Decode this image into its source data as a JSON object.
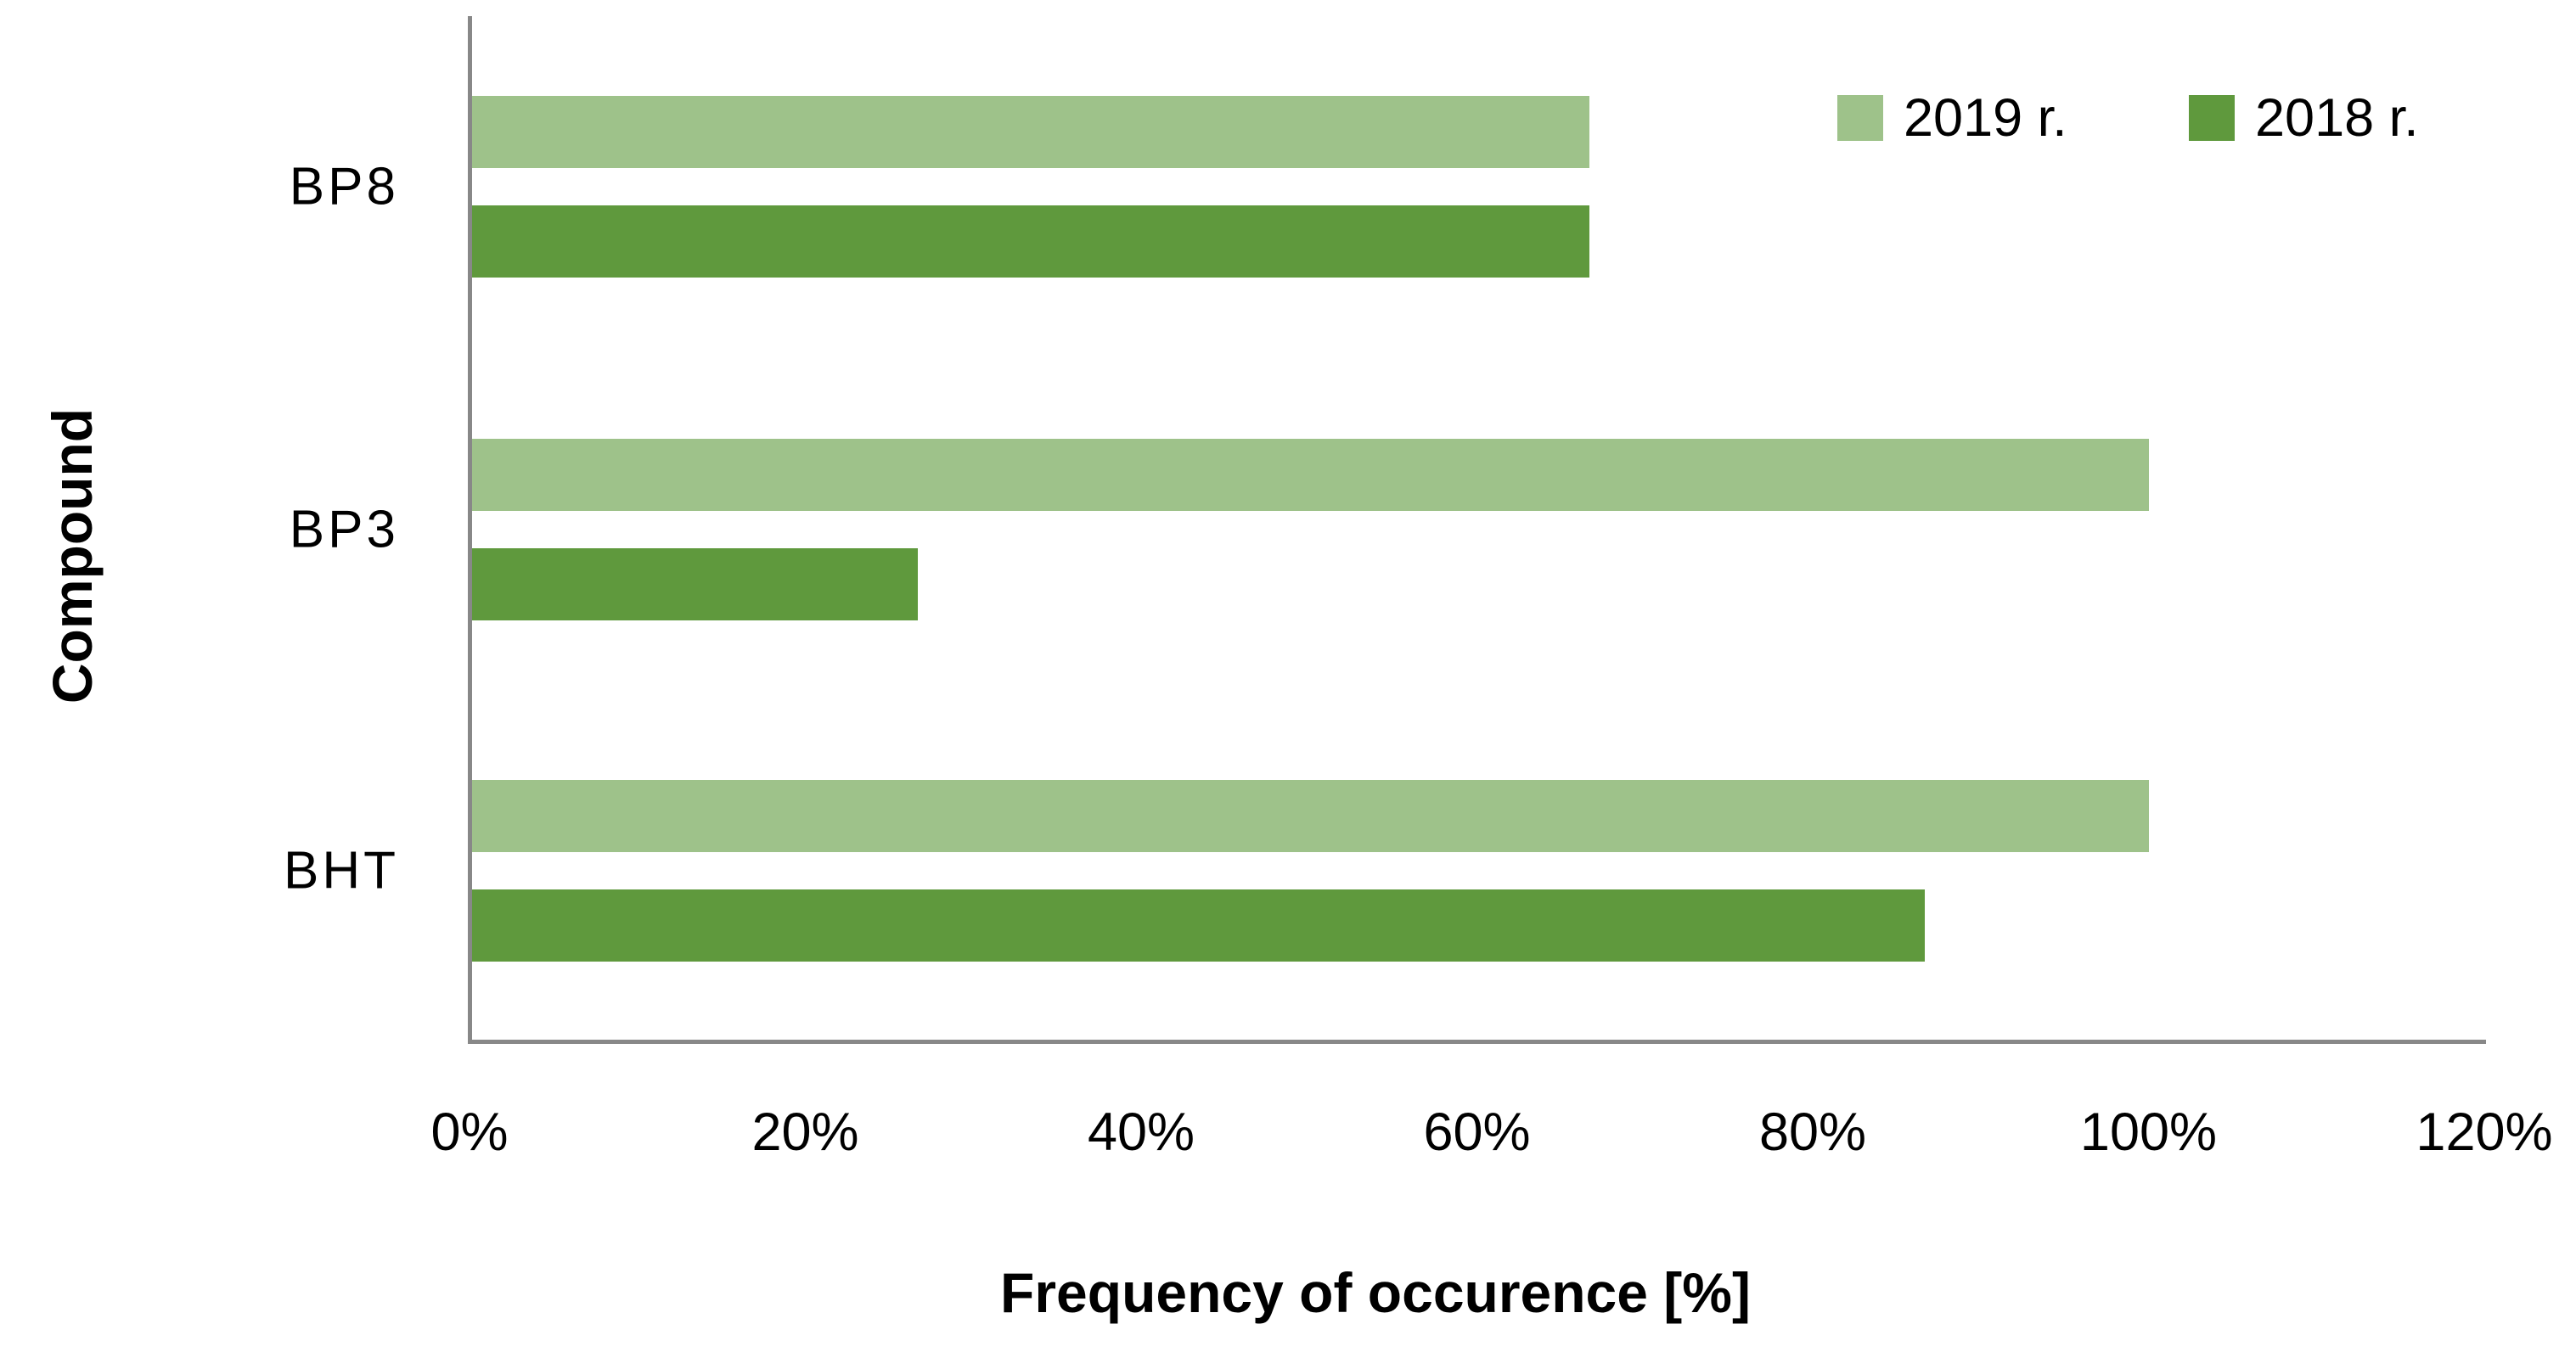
{
  "figure": {
    "background_color": "#FFFFFF",
    "axis_color": "#888888",
    "text_color": "#000000"
  },
  "chart_data": {
    "type": "bar",
    "orientation": "horizontal",
    "title": "",
    "xlabel": "Frequency of occurence [%]",
    "ylabel": "Compound",
    "categories": [
      "BP8",
      "BP3",
      "BHT"
    ],
    "series": [
      {
        "name": "2019 r.",
        "color": "#9EC28A",
        "values": [
          66.7,
          100,
          100
        ]
      },
      {
        "name": "2018 r.",
        "color": "#5F993D",
        "values": [
          66.7,
          26.7,
          86.7
        ]
      }
    ],
    "xlim": [
      0,
      120
    ],
    "x_tick_step": 20,
    "x_tick_labels": [
      "0%",
      "20%",
      "40%",
      "60%",
      "80%",
      "100%",
      "120%"
    ],
    "grid": false,
    "legend_position": "top-right",
    "legend_labels": [
      "2019 r.",
      "2018 r."
    ]
  }
}
